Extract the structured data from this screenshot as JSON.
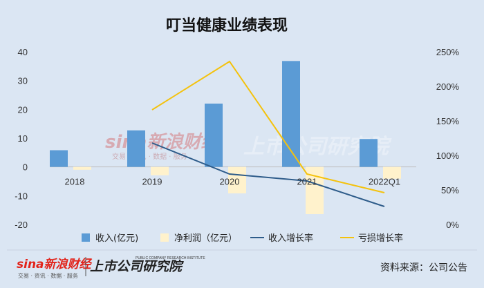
{
  "chart_data": {
    "type": "bar",
    "title": "叮当健康业绩表现",
    "categories": [
      "2018",
      "2019",
      "2020",
      "2021",
      "2022Q1"
    ],
    "y_left": {
      "min": -20,
      "max": 40,
      "step": 10,
      "ticks": [
        "-20",
        "-10",
        "0",
        "10",
        "20",
        "30",
        "40"
      ]
    },
    "y_right": {
      "min": 0,
      "max": 250,
      "step": 50,
      "ticks": [
        "0%",
        "50%",
        "100%",
        "150%",
        "200%",
        "250%"
      ]
    },
    "grid": false,
    "legend_position": "bottom",
    "series": [
      {
        "name": "收入(亿元)",
        "type": "bar",
        "axis": "left",
        "color": "#5b9bd5",
        "values": [
          5.8,
          12.7,
          22.0,
          36.8,
          9.7
        ]
      },
      {
        "name": "净利润（亿元）",
        "type": "bar",
        "axis": "left",
        "color": "#fff2cc",
        "values": [
          -1.0,
          -2.9,
          -9.2,
          -16.4,
          -4.1
        ]
      },
      {
        "name": "收入增长率",
        "type": "line",
        "axis": "right",
        "color": "#2e5c8a",
        "values": [
          null,
          118,
          73,
          63,
          26
        ]
      },
      {
        "name": "亏损增长率",
        "type": "line",
        "axis": "right",
        "color": "#f4c20d",
        "values": [
          null,
          166,
          236,
          73,
          46
        ]
      }
    ]
  },
  "watermark": {
    "brand": "sina新浪财经",
    "brand_sub": "交易 · 资讯 · 数据 · 服务",
    "institute": "上市公司研究院"
  },
  "footer": {
    "brand": "sina新浪财经",
    "brand_sub": "交易 · 资讯 · 数据 · 服务",
    "institute": "上市公司研究院",
    "institute_sub": "PUBLIC COMPANY RESEARCH INSTITUTE",
    "source": "资料来源：公司公告"
  },
  "colors": {
    "background": "#dbe6f3",
    "brand_red": "#e2231a"
  }
}
